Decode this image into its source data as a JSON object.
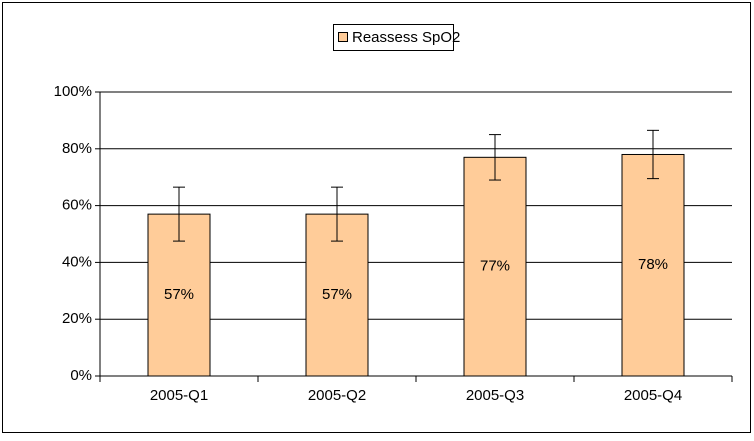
{
  "chart_data": {
    "type": "bar",
    "categories": [
      "2005-Q1",
      "2005-Q2",
      "2005-Q3",
      "2005-Q4"
    ],
    "series": [
      {
        "name": "Reassess SpO2",
        "color": "#ffcc99",
        "values": [
          57,
          57,
          77,
          78
        ],
        "value_labels": [
          "57%",
          "57%",
          "77%",
          "78%"
        ],
        "errors": [
          9.5,
          9.5,
          8,
          8.5
        ]
      }
    ],
    "ylim": [
      0,
      100
    ],
    "yticks": [
      {
        "value": 0,
        "label": "0%"
      },
      {
        "value": 20,
        "label": "20%"
      },
      {
        "value": 40,
        "label": "40%"
      },
      {
        "value": 60,
        "label": "60%"
      },
      {
        "value": 80,
        "label": "80%"
      },
      {
        "value": 100,
        "label": "100%"
      }
    ],
    "grid": true,
    "legend": "top"
  }
}
